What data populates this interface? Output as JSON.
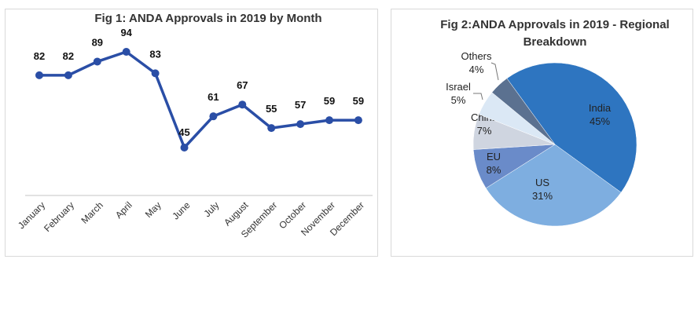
{
  "chart_data": [
    {
      "type": "line",
      "title": "Fig 1: ANDA Approvals in 2019 by Month",
      "categories": [
        "January",
        "February",
        "March",
        "April",
        "May",
        "June",
        "July",
        "August",
        "September",
        "October",
        "November",
        "December"
      ],
      "series": [
        {
          "values": [
            82,
            82,
            89,
            94,
            83,
            45,
            61,
            67,
            55,
            57,
            59,
            59
          ]
        }
      ],
      "data_labels": [
        "82",
        "82",
        "89",
        "94",
        "83",
        "45",
        "61",
        "67",
        "55",
        "57",
        "59",
        "59"
      ],
      "xlabel": "",
      "ylabel": "",
      "grid": false,
      "colors": {
        "line": "#2a4ea6",
        "axis": "#d9d9d9"
      }
    },
    {
      "type": "pie",
      "title": "Fig 2:ANDA Approvals in 2019 - Regional Breakdown",
      "slices": [
        {
          "label": "India",
          "value": 45,
          "pct_label": "45%",
          "color": "#2e75c0"
        },
        {
          "label": "US",
          "value": 31,
          "pct_label": "31%",
          "color": "#7eaee0"
        },
        {
          "label": "EU",
          "value": 8,
          "pct_label": "8%",
          "color": "#6a8bc9"
        },
        {
          "label": "China",
          "value": 7,
          "pct_label": "7%",
          "color": "#cfd5e0"
        },
        {
          "label": "Israel",
          "value": 5,
          "pct_label": "5%",
          "color": "#dbe8f5"
        },
        {
          "label": "Others",
          "value": 4,
          "pct_label": "4%",
          "color": "#5b7190"
        }
      ]
    }
  ]
}
